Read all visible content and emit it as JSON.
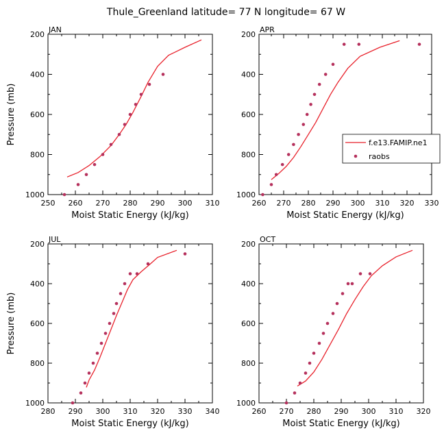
{
  "figure_title": "Thule_Greenland   latitude= 77 N longitude= 67 W",
  "legend": {
    "model_label": "f.e13.FAMIP.ne1",
    "obs_label": "raobs",
    "model_color": "#e8202a",
    "obs_color": "#b5305c",
    "placement": "right-middle of APR panel"
  },
  "chart_data": [
    {
      "type": "line",
      "panel": "JAN",
      "xlabel": "Moist Static Energy (kJ/kg)",
      "ylabel": "Pressure (mb)",
      "xlim": [
        250,
        310
      ],
      "ylim": [
        1000,
        200
      ],
      "y_inverted": true,
      "xticks": [
        250,
        260,
        270,
        280,
        290,
        300,
        310
      ],
      "yticks": [
        200,
        400,
        600,
        800,
        1000
      ],
      "series": [
        {
          "name": "f.e13.FAMIP.ne1",
          "kind": "line",
          "x": [
            257,
            261,
            265,
            269,
            273,
            276,
            278.5,
            281,
            284,
            286.5,
            290,
            294,
            300,
            306
          ],
          "y": [
            912,
            890,
            855,
            810,
            755,
            700,
            650,
            590,
            510,
            440,
            360,
            305,
            265,
            228
          ]
        },
        {
          "name": "raobs",
          "kind": "scatter",
          "x": [
            256,
            261,
            264,
            267,
            270,
            273,
            276,
            278,
            280,
            282,
            284,
            287,
            292
          ],
          "y": [
            1000,
            950,
            900,
            850,
            800,
            750,
            700,
            650,
            600,
            550,
            500,
            450,
            400
          ]
        }
      ]
    },
    {
      "type": "line",
      "panel": "APR",
      "xlabel": "Moist Static Energy (kJ/kg)",
      "ylabel": "",
      "xlim": [
        260,
        330
      ],
      "ylim": [
        1000,
        200
      ],
      "y_inverted": true,
      "xticks": [
        260,
        270,
        280,
        290,
        300,
        310,
        320,
        330
      ],
      "yticks": [
        200,
        400,
        600,
        800,
        1000
      ],
      "series": [
        {
          "name": "f.e13.FAMIP.ne1",
          "kind": "line",
          "x": [
            265,
            268,
            271,
            274,
            277,
            280,
            283,
            286,
            289,
            292,
            296,
            301,
            309,
            317
          ],
          "y": [
            925,
            895,
            860,
            815,
            760,
            700,
            640,
            570,
            500,
            440,
            370,
            310,
            265,
            232
          ]
        },
        {
          "name": "raobs",
          "kind": "scatter",
          "x": [
            261.5,
            265,
            267,
            269.5,
            272,
            274,
            276,
            278,
            279.5,
            281,
            282.5,
            284.5,
            287,
            290,
            294.5,
            300.5,
            325
          ],
          "y": [
            1000,
            950,
            900,
            850,
            800,
            750,
            700,
            650,
            600,
            550,
            500,
            450,
            400,
            350,
            250,
            250,
            250
          ]
        }
      ]
    },
    {
      "type": "line",
      "panel": "JUL",
      "xlabel": "Moist Static Energy (kJ/kg)",
      "ylabel": "Pressure (mb)",
      "xlim": [
        280,
        340
      ],
      "ylim": [
        1000,
        200
      ],
      "y_inverted": true,
      "xticks": [
        280,
        290,
        300,
        310,
        320,
        330,
        340
      ],
      "yticks": [
        200,
        400,
        600,
        800,
        1000
      ],
      "series": [
        {
          "name": "f.e13.FAMIP.ne1",
          "kind": "line",
          "x": [
            294,
            295,
            297,
            299,
            301,
            303,
            305,
            307,
            309,
            311,
            314,
            317,
            320,
            327
          ],
          "y": [
            922,
            885,
            835,
            770,
            700,
            630,
            560,
            495,
            430,
            380,
            340,
            305,
            268,
            232
          ]
        },
        {
          "name": "raobs",
          "kind": "scatter",
          "x": [
            289,
            292,
            293.5,
            295,
            296.5,
            298,
            299.5,
            301,
            302.5,
            304,
            305,
            306.5,
            308,
            310,
            312.5,
            316.5,
            330
          ],
          "y": [
            1000,
            950,
            900,
            850,
            800,
            750,
            700,
            650,
            600,
            550,
            500,
            450,
            400,
            350,
            350,
            300,
            250
          ]
        }
      ]
    },
    {
      "type": "line",
      "panel": "OCT",
      "xlabel": "Moist Static Energy (kJ/kg)",
      "ylabel": "",
      "xlim": [
        260,
        320
      ],
      "ylim": [
        1000,
        200
      ],
      "y_inverted": true,
      "xticks": [
        260,
        270,
        280,
        290,
        300,
        310,
        320
      ],
      "yticks": [
        200,
        400,
        600,
        800,
        1000
      ],
      "series": [
        {
          "name": "f.e13.FAMIP.ne1",
          "kind": "line",
          "x": [
            274,
            277,
            280,
            283,
            286,
            289,
            292,
            295,
            298,
            301,
            305,
            310,
            316
          ],
          "y": [
            915,
            890,
            845,
            780,
            705,
            630,
            550,
            480,
            415,
            360,
            310,
            265,
            232
          ]
        },
        {
          "name": "raobs",
          "kind": "scatter",
          "x": [
            270,
            273,
            275,
            277,
            278.5,
            280,
            282,
            283.5,
            285,
            287,
            288.5,
            290.5,
            292.5,
            294,
            297,
            300.5
          ],
          "y": [
            1000,
            950,
            900,
            850,
            800,
            750,
            700,
            650,
            600,
            550,
            500,
            450,
            400,
            400,
            350,
            350
          ]
        }
      ]
    }
  ]
}
